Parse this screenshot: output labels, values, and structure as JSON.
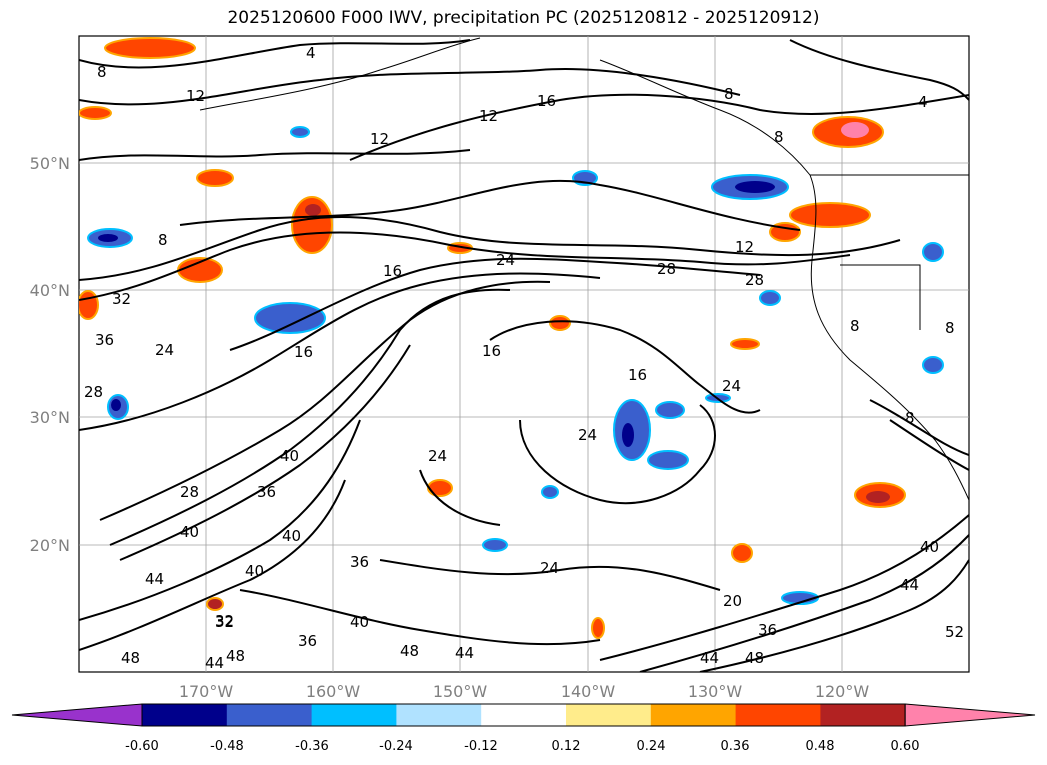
{
  "title": "2025120600 F000 IWV, precipitation PC (2025120812 - 2025120912)",
  "lat_labels": [
    "50°N",
    "40°N",
    "30°N",
    "20°N"
  ],
  "lon_labels": [
    "170°W",
    "160°W",
    "150°W",
    "140°W",
    "130°W",
    "120°W"
  ],
  "contour_labels": [
    "8",
    "12",
    "16",
    "12",
    "12",
    "4",
    "8",
    "8",
    "4",
    "8",
    "16",
    "24",
    "28",
    "12",
    "28",
    "16",
    "24",
    "16",
    "24",
    "24",
    "28",
    "32",
    "36",
    "40",
    "28",
    "36",
    "40",
    "44",
    "40",
    "36",
    "40",
    "32",
    "48",
    "44",
    "48",
    "36",
    "44",
    "48",
    "20",
    "36",
    "48",
    "44",
    "40",
    "52",
    "32",
    "40",
    "8",
    "8",
    "8",
    "24",
    "24",
    "16",
    "44"
  ],
  "colorbar": {
    "colors": [
      "#9932cc",
      "#00008b",
      "#3a5fcd",
      "#00bfff",
      "#b0e2ff",
      "#ffffff",
      "#ffec8b",
      "#ffa500",
      "#ff4500",
      "#b22222",
      "#ff82ab"
    ],
    "ticks": [
      "-0.60",
      "-0.48",
      "-0.36",
      "-0.24",
      "-0.12",
      "0.12",
      "0.24",
      "0.36",
      "0.48",
      "0.60"
    ]
  }
}
